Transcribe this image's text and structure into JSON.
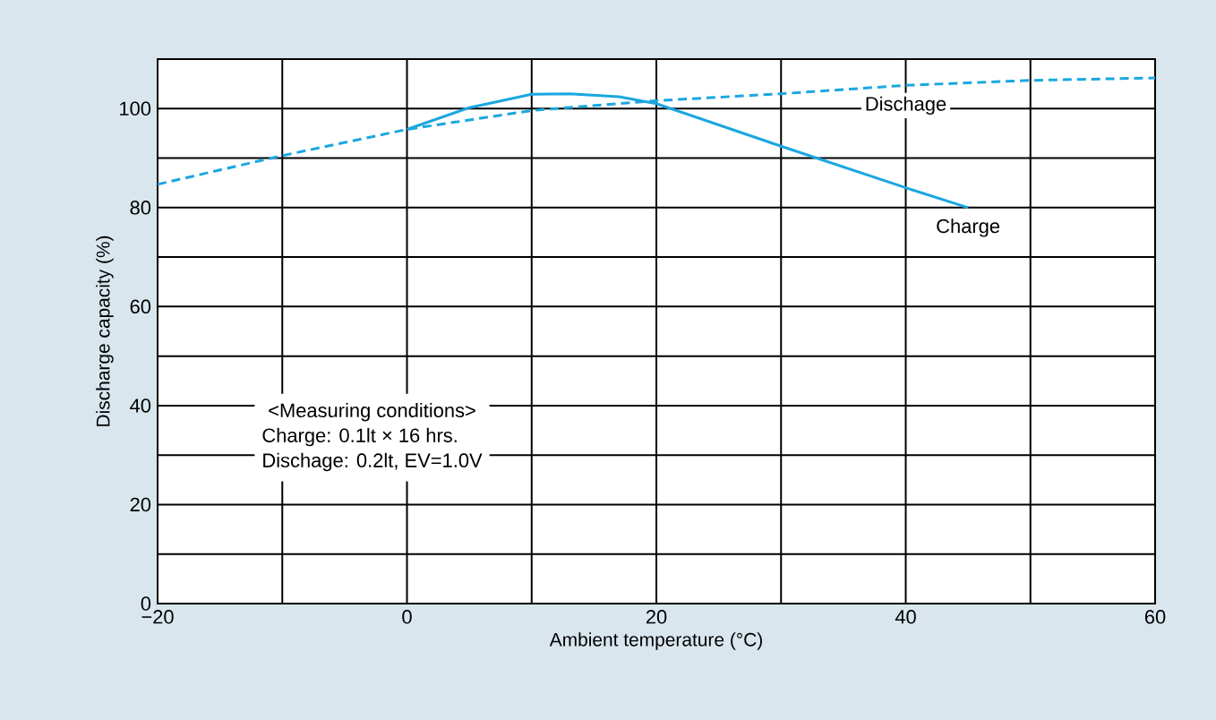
{
  "chart_data": {
    "type": "line",
    "xlabel": "Ambient temperature (°C)",
    "ylabel": "Discharge capacity (%)",
    "xlim": [
      -20,
      60
    ],
    "ylim": [
      0,
      110
    ],
    "xticks": [
      {
        "value": -20,
        "label": "−20"
      },
      0,
      20,
      40,
      60
    ],
    "yticks": [
      0,
      20,
      40,
      60,
      80,
      100
    ],
    "grid": true,
    "series": [
      {
        "name": "Dischage",
        "color": "#1aa7e0",
        "line_style": "dashed",
        "x": [
          -20,
          -10,
          0,
          10,
          20,
          30,
          40,
          50,
          60
        ],
        "values": [
          84.7,
          90.5,
          95.8,
          99.6,
          101.6,
          103,
          104.7,
          105.7,
          106.2
        ]
      },
      {
        "name": "Charge",
        "color": "#1aa7e0",
        "line_style": "solid",
        "x": [
          0,
          5,
          10,
          13,
          17,
          20,
          30,
          40,
          45
        ],
        "values": [
          95.8,
          100.2,
          102.9,
          103,
          102.4,
          101,
          92.4,
          84,
          80
        ]
      }
    ],
    "annotations": [
      "<Measuring conditions>",
      "Charge: 0.1lt × 16 hrs.",
      "Dischage: 0.2lt, EV=1.0V"
    ]
  }
}
